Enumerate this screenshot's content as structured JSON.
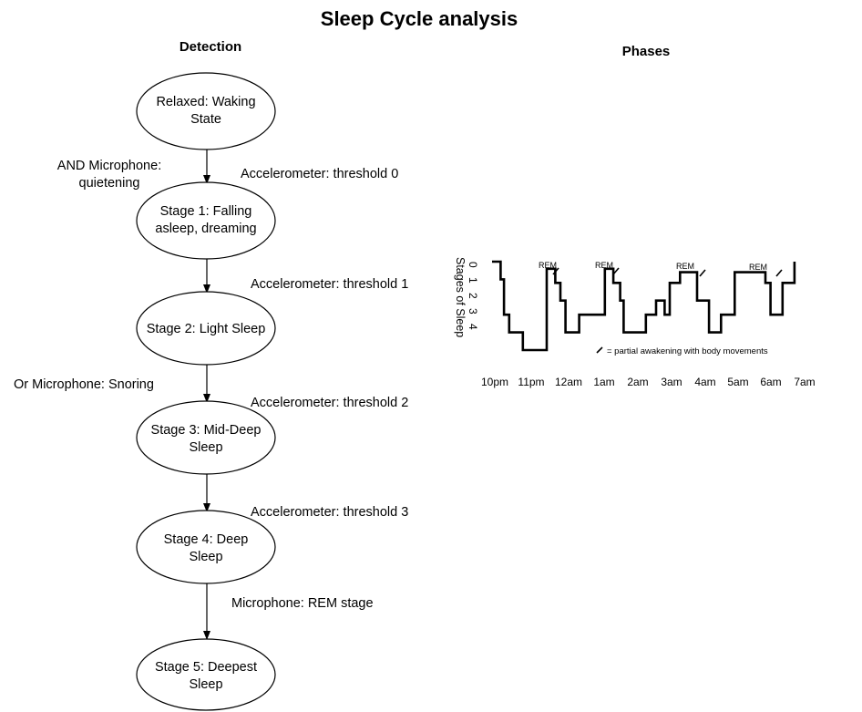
{
  "title": "Sleep Cycle analysis",
  "detection": {
    "heading": "Detection",
    "nodes": [
      {
        "lines": [
          "Relaxed: Waking",
          "State"
        ]
      },
      {
        "lines": [
          "Stage 1: Falling",
          "asleep, dreaming"
        ]
      },
      {
        "lines": [
          "Stage 2: Light Sleep"
        ]
      },
      {
        "lines": [
          "Stage 3: Mid-Deep",
          "Sleep"
        ]
      },
      {
        "lines": [
          "Stage 4: Deep",
          "Sleep"
        ]
      },
      {
        "lines": [
          "Stage 5: Deepest",
          "Sleep"
        ]
      }
    ],
    "edge_labels": {
      "and_microphone": [
        "AND Microphone:",
        "quietening"
      ],
      "acc0": "Accelerometer: threshold 0",
      "acc1": "Accelerometer: threshold 1",
      "or_microphone": "Or Microphone: Snoring",
      "acc2": "Accelerometer: threshold 2",
      "acc3": "Accelerometer: threshold 3",
      "mic_rem": "Microphone: REM stage"
    }
  },
  "phases": {
    "heading": "Phases",
    "y_axis_label": "Stages of Sleep",
    "y_ticks": [
      "0",
      "1",
      "2",
      "3",
      "4"
    ],
    "x_ticks": [
      "10pm",
      "11pm",
      "12am",
      "1am",
      "2am",
      "3am",
      "4am",
      "5am",
      "6am",
      "7am"
    ],
    "rem_labels": [
      "REM",
      "REM",
      "REM",
      "REM"
    ],
    "legend": "= partial awakening with body movements",
    "chart_data": {
      "type": "line",
      "step_points": [
        [
          22.0,
          0
        ],
        [
          22.25,
          0
        ],
        [
          22.25,
          1
        ],
        [
          22.35,
          1
        ],
        [
          22.35,
          3
        ],
        [
          22.5,
          3
        ],
        [
          22.5,
          4
        ],
        [
          22.9,
          4
        ],
        [
          22.9,
          5
        ],
        [
          23.6,
          5
        ],
        [
          23.6,
          0.4
        ],
        [
          23.85,
          0.4
        ],
        [
          23.85,
          1.2
        ],
        [
          24.0,
          1.2
        ],
        [
          24.0,
          2.2
        ],
        [
          24.15,
          2.2
        ],
        [
          24.15,
          4
        ],
        [
          24.55,
          4
        ],
        [
          24.55,
          3
        ],
        [
          25.3,
          3
        ],
        [
          25.3,
          0.4
        ],
        [
          25.55,
          0.4
        ],
        [
          25.55,
          1.2
        ],
        [
          25.75,
          1.2
        ],
        [
          25.75,
          2.2
        ],
        [
          25.85,
          2.2
        ],
        [
          25.85,
          4
        ],
        [
          26.5,
          4
        ],
        [
          26.5,
          3
        ],
        [
          26.8,
          3
        ],
        [
          26.8,
          2.2
        ],
        [
          27.05,
          2.2
        ],
        [
          27.05,
          3
        ],
        [
          27.2,
          3
        ],
        [
          27.2,
          1.2
        ],
        [
          27.5,
          1.2
        ],
        [
          27.5,
          0.6
        ],
        [
          28.0,
          0.6
        ],
        [
          28.0,
          2.2
        ],
        [
          28.35,
          2.2
        ],
        [
          28.35,
          4
        ],
        [
          28.7,
          4
        ],
        [
          28.7,
          3
        ],
        [
          29.1,
          3
        ],
        [
          29.1,
          0.6
        ],
        [
          30.0,
          0.6
        ],
        [
          30.0,
          1.2
        ],
        [
          30.15,
          1.2
        ],
        [
          30.15,
          3
        ],
        [
          30.5,
          3
        ],
        [
          30.5,
          1.2
        ],
        [
          30.85,
          1.2
        ],
        [
          30.85,
          0
        ]
      ]
    }
  }
}
